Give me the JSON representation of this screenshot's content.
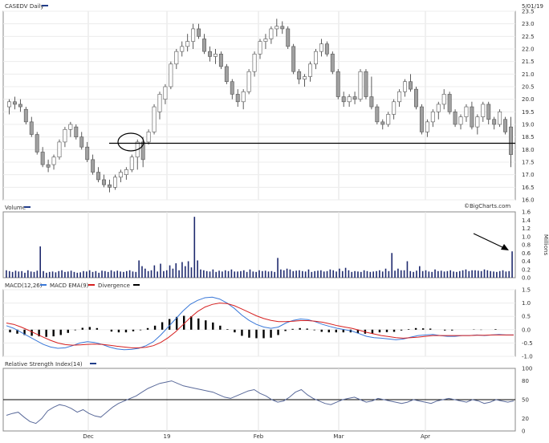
{
  "chart_data": [
    {
      "type": "candlestick",
      "title": "CASEDV Daily",
      "date": "5/01/19",
      "credit": "©BigCharts.com",
      "ylim": [
        16.0,
        23.5
      ],
      "yticks": [
        "23.5",
        "23.0",
        "22.5",
        "22.0",
        "21.5",
        "21.0",
        "20.5",
        "20.0",
        "19.5",
        "19.0",
        "18.5",
        "18.0",
        "17.5",
        "17.0",
        "16.5",
        "16.0"
      ],
      "support_level": 18.25,
      "months": [
        "Dec",
        "19",
        "Feb",
        "Mar",
        "Apr"
      ],
      "candles": [
        [
          19.7,
          20.0,
          19.4,
          19.9
        ],
        [
          19.9,
          20.1,
          19.6,
          19.8
        ],
        [
          19.8,
          20.0,
          19.5,
          19.7
        ],
        [
          19.6,
          19.7,
          19.0,
          19.1
        ],
        [
          19.1,
          19.3,
          18.5,
          18.6
        ],
        [
          18.6,
          18.7,
          17.8,
          17.9
        ],
        [
          17.9,
          18.1,
          17.3,
          17.4
        ],
        [
          17.4,
          17.6,
          17.1,
          17.3
        ],
        [
          17.4,
          17.8,
          17.2,
          17.7
        ],
        [
          17.7,
          18.4,
          17.6,
          18.3
        ],
        [
          18.3,
          18.9,
          18.1,
          18.8
        ],
        [
          18.8,
          19.1,
          18.5,
          19.0
        ],
        [
          18.9,
          19.0,
          18.4,
          18.5
        ],
        [
          18.5,
          18.7,
          18.0,
          18.1
        ],
        [
          18.1,
          18.3,
          17.5,
          17.6
        ],
        [
          17.6,
          17.8,
          17.0,
          17.1
        ],
        [
          17.1,
          17.3,
          16.7,
          16.8
        ],
        [
          16.8,
          17.0,
          16.5,
          16.6
        ],
        [
          16.6,
          16.8,
          16.3,
          16.5
        ],
        [
          16.5,
          17.0,
          16.4,
          16.9
        ],
        [
          16.9,
          17.2,
          16.7,
          17.1
        ],
        [
          17.0,
          17.3,
          16.8,
          17.2
        ],
        [
          17.2,
          17.8,
          17.1,
          17.7
        ],
        [
          17.7,
          18.4,
          17.2,
          18.3
        ],
        [
          18.3,
          18.5,
          17.3,
          17.6
        ],
        [
          18.3,
          18.8,
          18.2,
          18.7
        ],
        [
          18.7,
          19.8,
          18.6,
          19.7
        ],
        [
          19.5,
          20.3,
          19.2,
          20.2
        ],
        [
          20.0,
          20.6,
          19.8,
          20.5
        ],
        [
          20.5,
          21.5,
          20.4,
          21.4
        ],
        [
          21.4,
          22.0,
          21.2,
          21.9
        ],
        [
          21.9,
          22.3,
          21.7,
          22.1
        ],
        [
          22.1,
          22.6,
          21.9,
          22.3
        ],
        [
          22.3,
          23.0,
          22.0,
          22.8
        ],
        [
          22.8,
          23.0,
          22.4,
          22.5
        ],
        [
          22.4,
          22.6,
          21.8,
          21.9
        ],
        [
          21.9,
          22.1,
          21.5,
          21.7
        ],
        [
          21.7,
          22.0,
          21.4,
          21.8
        ],
        [
          21.8,
          21.9,
          21.2,
          21.3
        ],
        [
          21.3,
          21.4,
          20.6,
          20.7
        ],
        [
          20.7,
          20.8,
          20.0,
          20.2
        ],
        [
          20.2,
          20.4,
          19.7,
          19.9
        ],
        [
          19.9,
          20.4,
          19.6,
          20.3
        ],
        [
          20.3,
          21.2,
          20.2,
          21.1
        ],
        [
          21.1,
          21.9,
          20.9,
          21.8
        ],
        [
          21.8,
          22.4,
          21.6,
          22.3
        ],
        [
          22.3,
          22.6,
          22.0,
          22.4
        ],
        [
          22.4,
          22.9,
          22.2,
          22.8
        ],
        [
          22.8,
          23.2,
          22.5,
          22.9
        ],
        [
          22.9,
          23.1,
          22.6,
          22.8
        ],
        [
          22.8,
          22.9,
          22.0,
          22.1
        ],
        [
          22.1,
          22.2,
          21.0,
          21.1
        ],
        [
          21.1,
          21.2,
          20.6,
          20.8
        ],
        [
          20.8,
          21.0,
          20.5,
          20.9
        ],
        [
          20.9,
          21.5,
          20.7,
          21.4
        ],
        [
          21.4,
          22.0,
          21.2,
          21.9
        ],
        [
          21.9,
          22.4,
          21.7,
          22.2
        ],
        [
          22.2,
          22.3,
          21.7,
          21.8
        ],
        [
          21.8,
          21.9,
          21.0,
          21.1
        ],
        [
          21.1,
          21.2,
          20.0,
          20.1
        ],
        [
          20.1,
          20.3,
          19.7,
          19.9
        ],
        [
          19.9,
          20.2,
          19.7,
          20.1
        ],
        [
          20.1,
          20.3,
          19.8,
          20.0
        ],
        [
          20.0,
          21.2,
          19.9,
          21.1
        ],
        [
          21.1,
          21.2,
          20.0,
          20.1
        ],
        [
          20.1,
          20.9,
          19.6,
          19.7
        ],
        [
          19.7,
          19.8,
          19.0,
          19.1
        ],
        [
          19.1,
          19.2,
          18.8,
          19.0
        ],
        [
          19.0,
          19.5,
          18.9,
          19.4
        ],
        [
          19.4,
          20.0,
          19.2,
          19.9
        ],
        [
          19.9,
          20.4,
          19.7,
          20.3
        ],
        [
          20.3,
          20.8,
          20.1,
          20.7
        ],
        [
          20.7,
          21.0,
          20.3,
          20.4
        ],
        [
          20.4,
          20.5,
          19.6,
          19.7
        ],
        [
          19.7,
          19.8,
          18.6,
          18.7
        ],
        [
          18.7,
          19.2,
          18.5,
          19.1
        ],
        [
          19.1,
          19.6,
          18.9,
          19.5
        ],
        [
          19.5,
          19.9,
          19.2,
          19.8
        ],
        [
          19.8,
          20.4,
          19.6,
          20.2
        ],
        [
          20.2,
          20.3,
          19.4,
          19.5
        ],
        [
          19.5,
          19.6,
          18.9,
          19.0
        ],
        [
          19.0,
          19.4,
          18.8,
          19.3
        ],
        [
          19.3,
          19.8,
          19.1,
          19.7
        ],
        [
          19.7,
          19.9,
          18.8,
          18.9
        ],
        [
          18.9,
          19.4,
          18.6,
          19.3
        ],
        [
          19.3,
          19.9,
          19.1,
          19.8
        ],
        [
          19.8,
          19.9,
          19.0,
          19.2
        ],
        [
          19.2,
          19.3,
          18.8,
          19.0
        ],
        [
          19.0,
          19.6,
          18.9,
          19.5
        ],
        [
          19.2,
          19.3,
          18.6,
          18.7
        ],
        [
          18.9,
          19.3,
          17.3,
          17.8
        ]
      ]
    },
    {
      "type": "bar",
      "title": "Volume",
      "ylabel": "Millions",
      "ylim": [
        0,
        1.6
      ],
      "yticks": [
        "1.6",
        "1.4",
        "1.2",
        "1.0",
        "0.8",
        "0.6",
        "0.4",
        "0.2",
        "0.0"
      ],
      "values": [
        0.18,
        0.16,
        0.14,
        0.17,
        0.15,
        0.16,
        0.12,
        0.18,
        0.15,
        0.14,
        0.17,
        0.76,
        0.16,
        0.12,
        0.14,
        0.15,
        0.13,
        0.16,
        0.18,
        0.14,
        0.15,
        0.17,
        0.14,
        0.12,
        0.13,
        0.16,
        0.15,
        0.18,
        0.14,
        0.16,
        0.12,
        0.17,
        0.16,
        0.14,
        0.18,
        0.15,
        0.17,
        0.15,
        0.14,
        0.16,
        0.18,
        0.15,
        0.14,
        0.42,
        0.28,
        0.22,
        0.16,
        0.18,
        0.3,
        0.15,
        0.34,
        0.16,
        0.18,
        0.3,
        0.22,
        0.35,
        0.18,
        0.38,
        0.28,
        0.4,
        0.25,
        1.48,
        0.42,
        0.2,
        0.18,
        0.16,
        0.15,
        0.2,
        0.14,
        0.17,
        0.15,
        0.18,
        0.16,
        0.2,
        0.15,
        0.15,
        0.16,
        0.18,
        0.14,
        0.2,
        0.15,
        0.14,
        0.18,
        0.16,
        0.17,
        0.15,
        0.16,
        0.14,
        0.48,
        0.2,
        0.18,
        0.22,
        0.2,
        0.16,
        0.17,
        0.18,
        0.16,
        0.15,
        0.2,
        0.14,
        0.16,
        0.17,
        0.18,
        0.15,
        0.16,
        0.2,
        0.18,
        0.15,
        0.22,
        0.16,
        0.24,
        0.18,
        0.14,
        0.16,
        0.15,
        0.14,
        0.18,
        0.16,
        0.14,
        0.15,
        0.16,
        0.18,
        0.15,
        0.22,
        0.16,
        0.6,
        0.17,
        0.22,
        0.18,
        0.18,
        0.4,
        0.16,
        0.14,
        0.17,
        0.28,
        0.16,
        0.18,
        0.15,
        0.14,
        0.2,
        0.16,
        0.17,
        0.15,
        0.16,
        0.18,
        0.15,
        0.14,
        0.16,
        0.18,
        0.2,
        0.16,
        0.18,
        0.18,
        0.17,
        0.16,
        0.2,
        0.18,
        0.16,
        0.15,
        0.14,
        0.16,
        0.18,
        0.15,
        0.16,
        0.64
      ],
      "arrow_annotation": true
    },
    {
      "type": "line",
      "title": "MACD(12,26)",
      "legend": [
        "MACD(12,26)",
        "MACD EMA(9)",
        "Divergence"
      ],
      "colors": {
        "macd": "#3a78d8",
        "ema": "#d62020",
        "divergence": "#000000"
      },
      "ylim": [
        -1.0,
        1.5
      ],
      "yticks": [
        "1.5",
        "1.0",
        "0.5",
        "0.0",
        "-0.5",
        "-1.0"
      ],
      "series": [
        {
          "name": "MACD(12,26)",
          "values": [
            0.15,
            0.05,
            -0.1,
            -0.25,
            -0.4,
            -0.55,
            -0.65,
            -0.7,
            -0.68,
            -0.6,
            -0.5,
            -0.45,
            -0.48,
            -0.55,
            -0.65,
            -0.72,
            -0.75,
            -0.74,
            -0.7,
            -0.6,
            -0.45,
            -0.2,
            0.1,
            0.4,
            0.7,
            0.95,
            1.1,
            1.2,
            1.22,
            1.15,
            1.0,
            0.8,
            0.55,
            0.35,
            0.2,
            0.1,
            0.05,
            0.1,
            0.25,
            0.35,
            0.4,
            0.38,
            0.3,
            0.2,
            0.12,
            0.05,
            0.0,
            -0.05,
            -0.15,
            -0.25,
            -0.3,
            -0.32,
            -0.35,
            -0.38,
            -0.35,
            -0.28,
            -0.22,
            -0.2,
            -0.18,
            -0.22,
            -0.25,
            -0.25,
            -0.22,
            -0.22,
            -0.2,
            -0.22,
            -0.2,
            -0.18,
            -0.2,
            -0.2
          ]
        },
        {
          "name": "MACD EMA(9)",
          "values": [
            0.25,
            0.2,
            0.1,
            -0.02,
            -0.15,
            -0.28,
            -0.4,
            -0.5,
            -0.56,
            -0.58,
            -0.57,
            -0.55,
            -0.54,
            -0.55,
            -0.58,
            -0.62,
            -0.65,
            -0.68,
            -0.68,
            -0.66,
            -0.6,
            -0.48,
            -0.3,
            -0.08,
            0.18,
            0.45,
            0.68,
            0.85,
            0.95,
            1.0,
            0.98,
            0.9,
            0.78,
            0.65,
            0.52,
            0.42,
            0.35,
            0.3,
            0.3,
            0.32,
            0.34,
            0.34,
            0.32,
            0.28,
            0.22,
            0.15,
            0.1,
            0.05,
            -0.02,
            -0.1,
            -0.16,
            -0.22,
            -0.26,
            -0.3,
            -0.32,
            -0.3,
            -0.28,
            -0.25,
            -0.22,
            -0.22,
            -0.22,
            -0.22,
            -0.22,
            -0.22,
            -0.21,
            -0.21,
            -0.2,
            -0.2,
            -0.2,
            -0.2
          ]
        },
        {
          "name": "Divergence",
          "values": [
            -0.1,
            -0.15,
            -0.2,
            -0.23,
            -0.25,
            -0.27,
            -0.25,
            -0.2,
            -0.12,
            -0.02,
            0.07,
            0.1,
            0.06,
            0.0,
            -0.07,
            -0.1,
            -0.1,
            -0.06,
            -0.02,
            0.06,
            0.15,
            0.28,
            0.4,
            0.48,
            0.52,
            0.5,
            0.42,
            0.35,
            0.27,
            0.15,
            0.02,
            -0.1,
            -0.23,
            -0.3,
            -0.32,
            -0.32,
            -0.3,
            -0.2,
            -0.05,
            0.03,
            0.06,
            0.04,
            -0.02,
            -0.08,
            -0.1,
            -0.1,
            -0.1,
            -0.1,
            -0.13,
            -0.15,
            -0.14,
            -0.1,
            -0.09,
            -0.08,
            -0.03,
            0.02,
            0.06,
            0.05,
            0.04,
            0.0,
            -0.03,
            -0.03,
            0.0,
            0.0,
            0.01,
            -0.01,
            0.0,
            0.02,
            0.0,
            0.0
          ]
        }
      ]
    },
    {
      "type": "line",
      "title": "Relative Strength Index(14)",
      "ylim": [
        0,
        100
      ],
      "yticks": [
        "100",
        "80",
        "50",
        "20",
        "0"
      ],
      "reference_level": 50,
      "values": [
        25,
        28,
        30,
        22,
        15,
        12,
        20,
        32,
        38,
        42,
        40,
        36,
        30,
        34,
        28,
        24,
        22,
        30,
        38,
        44,
        48,
        52,
        56,
        62,
        68,
        72,
        76,
        78,
        80,
        76,
        72,
        70,
        68,
        66,
        64,
        62,
        58,
        54,
        52,
        56,
        60,
        64,
        66,
        60,
        56,
        50,
        46,
        48,
        54,
        62,
        66,
        58,
        52,
        48,
        44,
        42,
        46,
        50,
        52,
        54,
        50,
        46,
        48,
        52,
        50,
        48,
        46,
        44,
        46,
        50,
        48,
        46,
        44,
        48,
        50,
        52,
        50,
        48,
        46,
        50,
        48,
        44,
        46,
        50,
        48,
        46,
        48
      ]
    }
  ]
}
